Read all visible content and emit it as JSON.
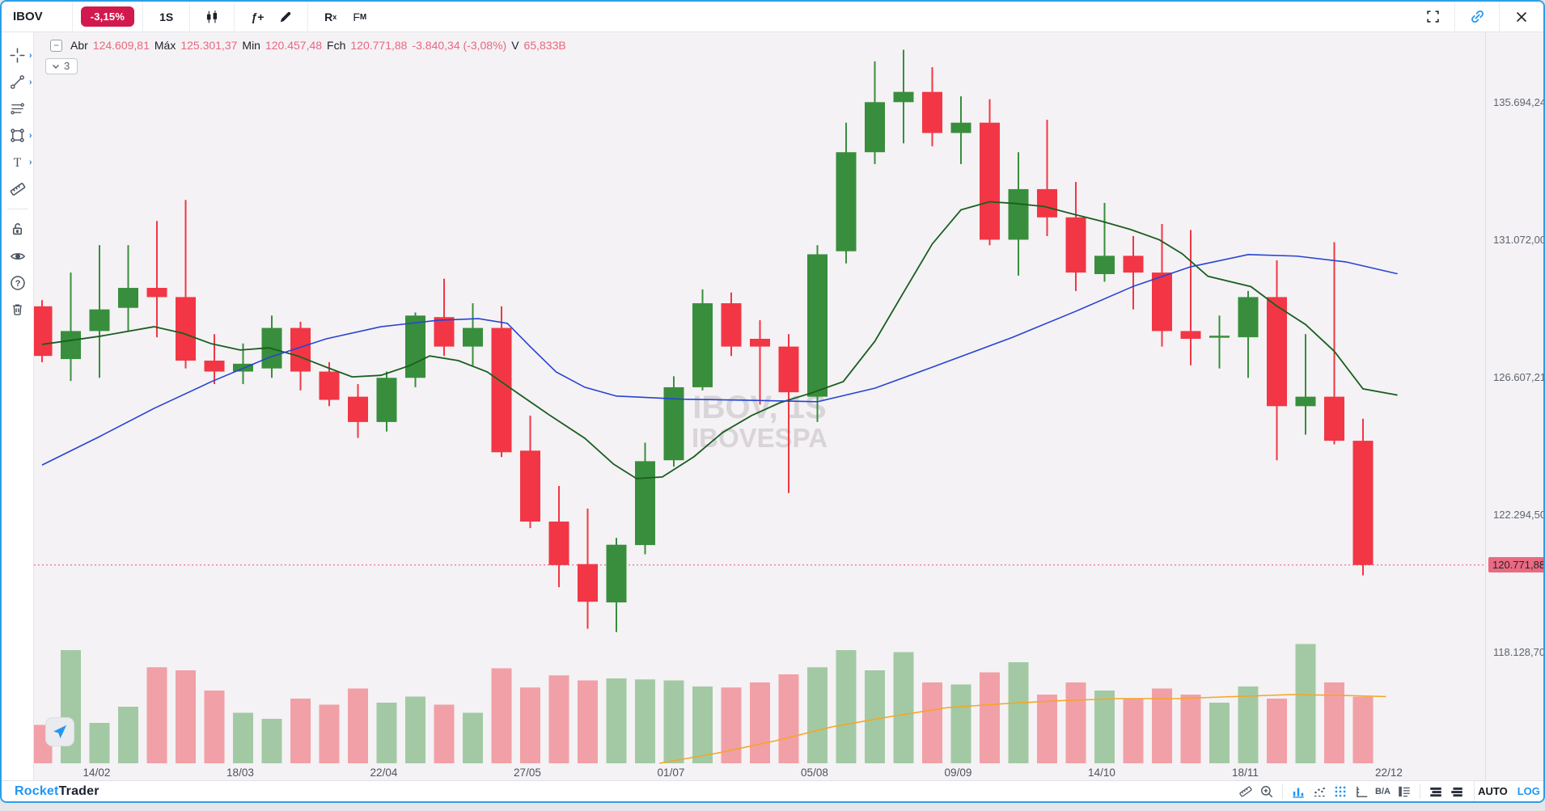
{
  "top_toolbar": {
    "symbol": "IBOV",
    "change_badge": "-3,15%",
    "timeframe": "1S",
    "fx_label": "ƒ+",
    "rx_label": "R",
    "rx_sub": "x",
    "fm_label": "F",
    "fm_sub": "M",
    "right_icons": [
      "fullscreen-icon",
      "link-icon",
      "close-icon"
    ]
  },
  "left_toolbar": {
    "tools": [
      "crosshair",
      "trend-line",
      "parallel-lines",
      "rectangle",
      "text",
      "ruler",
      "lock",
      "eye",
      "help",
      "trash"
    ]
  },
  "legend": {
    "open_label": "Abr",
    "open": "124.609,81",
    "high_label": "Máx",
    "high": "125.301,37",
    "low_label": "Min",
    "low": "120.457,48",
    "close_label": "Fch",
    "close": "120.771,88",
    "change": "-3.840,34 (-3,08%)",
    "volume_label": "V",
    "volume": "65,833B",
    "collapse_glyph": "−",
    "indicators_count": "3"
  },
  "watermark": {
    "line1": "IBOV, 1S",
    "line2": "IBOVESPA"
  },
  "price_axis": {
    "ticks": [
      {
        "value": 135694.24,
        "label": "135.694,24"
      },
      {
        "value": 131072.0,
        "label": "131.072,00"
      },
      {
        "value": 126607.21,
        "label": "126.607,21"
      },
      {
        "value": 122294.5,
        "label": "122.294,50"
      },
      {
        "value": 118128.7,
        "label": "118.128,70"
      }
    ],
    "last": {
      "value": 120771.88,
      "label": "120.771,88"
    }
  },
  "time_axis": [
    {
      "i": 1.9,
      "label": "14/02"
    },
    {
      "i": 6.9,
      "label": "18/03"
    },
    {
      "i": 11.9,
      "label": "22/04"
    },
    {
      "i": 16.9,
      "label": "27/05"
    },
    {
      "i": 21.9,
      "label": "01/07"
    },
    {
      "i": 26.9,
      "label": "05/08"
    },
    {
      "i": 31.9,
      "label": "09/09"
    },
    {
      "i": 36.9,
      "label": "14/10"
    },
    {
      "i": 41.9,
      "label": "18/11"
    },
    {
      "i": 46.9,
      "label": "22/12"
    }
  ],
  "bottom_toolbar": {
    "brand_primary": "Rocket",
    "brand_secondary": "Trader",
    "ba_label": "B/A",
    "auto_label": "AUTO",
    "log_label": "LOG",
    "icons": [
      "ruler-icon",
      "zoom-in-icon",
      "bar-chart-icon",
      "scatter-chart-icon",
      "dots-grid-icon",
      "axis-icon",
      "ba-label",
      "list-icon",
      "rows-icon",
      "rows2-icon"
    ]
  },
  "chart_data": {
    "type": "candlestick",
    "title": "IBOV weekly (1S) candlestick chart with volume, IBOVESPA",
    "scale": "log",
    "legend_position": "top-left",
    "price_range_visible": [
      117500,
      138500
    ],
    "candles": {
      "open": [
        128900,
        127200,
        128100,
        128850,
        129500,
        129200,
        127150,
        126800,
        126900,
        128200,
        126800,
        126000,
        125200,
        126600,
        128550,
        127600,
        128200,
        124300,
        122100,
        120800,
        119640,
        121380,
        124000,
        126300,
        129000,
        127850,
        127600,
        126000,
        130700,
        134000,
        135700,
        136050,
        134650,
        135000,
        131080,
        132760,
        131820,
        129950,
        130550,
        130000,
        128100,
        127900,
        127900,
        129200,
        125700,
        126000,
        124609.81
      ],
      "high": [
        129100,
        130000,
        130900,
        130900,
        131700,
        132400,
        128000,
        127700,
        128600,
        128400,
        127100,
        126400,
        126800,
        128700,
        129800,
        129000,
        128900,
        125400,
        123200,
        122500,
        121600,
        124550,
        126650,
        129450,
        129350,
        128450,
        128000,
        130900,
        135000,
        137100,
        137500,
        136900,
        135900,
        135800,
        134000,
        135100,
        133000,
        132300,
        131200,
        131600,
        131400,
        128600,
        129400,
        130400,
        128000,
        131000,
        125301.37
      ],
      "low": [
        127100,
        126500,
        126600,
        128100,
        127900,
        126900,
        126400,
        126400,
        126600,
        126200,
        125700,
        124700,
        124900,
        126300,
        127300,
        127000,
        124100,
        121900,
        120100,
        118850,
        118750,
        121100,
        123800,
        126200,
        127300,
        125750,
        122980,
        125200,
        130300,
        133600,
        134300,
        134200,
        133600,
        130900,
        129900,
        131200,
        129400,
        129700,
        128800,
        127600,
        127000,
        126900,
        126600,
        124000,
        124800,
        124500,
        120457.48
      ],
      "close": [
        127300,
        128100,
        128800,
        129500,
        129200,
        127150,
        126800,
        127050,
        128200,
        126800,
        125900,
        125200,
        126600,
        128600,
        127600,
        128200,
        124250,
        122100,
        120770,
        119660,
        121390,
        123970,
        126300,
        129000,
        127600,
        127600,
        126140,
        130600,
        134000,
        135700,
        136050,
        134650,
        135000,
        131080,
        132760,
        131820,
        130000,
        130550,
        130000,
        128100,
        127850,
        127950,
        129200,
        125700,
        126000,
        124610,
        120771.88
      ],
      "volume_B": [
        38,
        112,
        40,
        56,
        95,
        92,
        72,
        50,
        44,
        64,
        58,
        74,
        60,
        66,
        58,
        50,
        94,
        75,
        87,
        82,
        84,
        83,
        82,
        76,
        75,
        80,
        88,
        95,
        112,
        92,
        110,
        80,
        78,
        90,
        100,
        68,
        80,
        72,
        64,
        74,
        68,
        60,
        76,
        64,
        118,
        80,
        65.833
      ]
    },
    "ma_fast_green": {
      "points": [
        [
          0,
          127670
        ],
        [
          2,
          127930
        ],
        [
          3.9,
          128240
        ],
        [
          4.9,
          128030
        ],
        [
          5.9,
          127690
        ],
        [
          6.9,
          127490
        ],
        [
          7.9,
          127560
        ],
        [
          8.9,
          127300
        ],
        [
          9.9,
          126940
        ],
        [
          10.8,
          126630
        ],
        [
          11.8,
          126680
        ],
        [
          12.8,
          126990
        ],
        [
          13.5,
          127300
        ],
        [
          14.5,
          127150
        ],
        [
          15.5,
          126790
        ],
        [
          16.6,
          126090
        ],
        [
          17.7,
          125400
        ],
        [
          18.9,
          124690
        ],
        [
          19.9,
          123880
        ],
        [
          20.7,
          123430
        ],
        [
          21.6,
          123480
        ],
        [
          22.7,
          124110
        ],
        [
          23.7,
          124870
        ],
        [
          24.7,
          125400
        ],
        [
          25.7,
          125810
        ],
        [
          26.8,
          126120
        ],
        [
          27.9,
          126480
        ],
        [
          29,
          127770
        ],
        [
          30,
          129350
        ],
        [
          31,
          130940
        ],
        [
          32,
          132070
        ],
        [
          33,
          132340
        ],
        [
          33.9,
          132280
        ],
        [
          34.9,
          132180
        ],
        [
          35.9,
          131930
        ],
        [
          36.9,
          131690
        ],
        [
          37.9,
          131420
        ],
        [
          38.9,
          131080
        ],
        [
          39.7,
          130620
        ],
        [
          40.6,
          129880
        ],
        [
          42.1,
          129540
        ],
        [
          43,
          128910
        ],
        [
          44,
          128310
        ],
        [
          45,
          127450
        ],
        [
          46,
          126250
        ],
        [
          47.2,
          126050
        ]
      ]
    },
    "ma_slow_blue": {
      "points": [
        [
          0,
          123850
        ],
        [
          2,
          124740
        ],
        [
          3.9,
          125630
        ],
        [
          5.9,
          126480
        ],
        [
          7.9,
          127250
        ],
        [
          9.9,
          127850
        ],
        [
          11.8,
          128240
        ],
        [
          13.8,
          128450
        ],
        [
          15.2,
          128500
        ],
        [
          16.2,
          128350
        ],
        [
          17,
          127600
        ],
        [
          17.9,
          126790
        ],
        [
          18.9,
          126300
        ],
        [
          20,
          126020
        ],
        [
          22.3,
          125920
        ],
        [
          24.5,
          125890
        ],
        [
          27,
          125840
        ],
        [
          29,
          126270
        ],
        [
          31,
          126940
        ],
        [
          33.8,
          127900
        ],
        [
          36,
          128740
        ],
        [
          38,
          129550
        ],
        [
          40,
          130190
        ],
        [
          42,
          130590
        ],
        [
          43.7,
          130540
        ],
        [
          45.4,
          130350
        ],
        [
          47.2,
          129960
        ]
      ]
    },
    "volume_ma_orange": {
      "points": [
        [
          21.5,
          0
        ],
        [
          23.5,
          10
        ],
        [
          25.5,
          22
        ],
        [
          27.5,
          36
        ],
        [
          29.5,
          46
        ],
        [
          31.5,
          55
        ],
        [
          33.5,
          59
        ],
        [
          35.5,
          62
        ],
        [
          37.5,
          64
        ],
        [
          39.5,
          64
        ],
        [
          41.5,
          66
        ],
        [
          43.5,
          68
        ],
        [
          45.5,
          67
        ],
        [
          46.8,
          66
        ]
      ]
    },
    "colors": {
      "up": "#388e3c",
      "down": "#f23645",
      "vol_up": "#a3c9a4",
      "vol_down": "#f1a0a7",
      "ma_fast": "#1a5e20",
      "ma_slow": "#2743d3",
      "vol_ma": "#f5a623",
      "last_price_line": "#e05a75",
      "background": "#f4f2f4",
      "watermark": "#d8d4d8"
    }
  }
}
